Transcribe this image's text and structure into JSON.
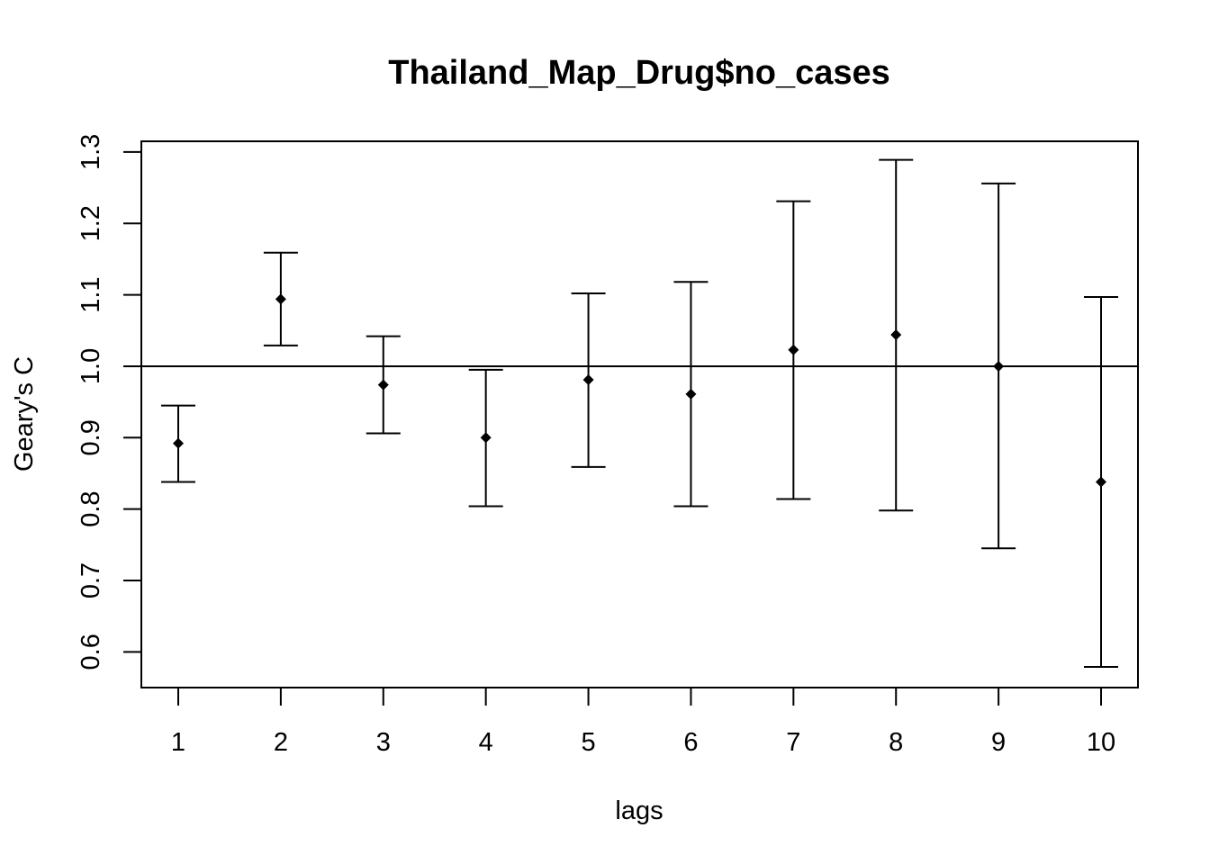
{
  "chart_data": {
    "type": "scatter",
    "title": "Thailand_Map_Drug$no_cases",
    "xlabel": "lags",
    "ylabel": "Geary's  C",
    "x_ticks": [
      "1",
      "2",
      "3",
      "4",
      "5",
      "6",
      "7",
      "8",
      "9",
      "10"
    ],
    "y_ticks": [
      "0.6",
      "0.7",
      "0.8",
      "0.9",
      "1.0",
      "1.1",
      "1.2",
      "1.3"
    ],
    "xlim": [
      0.64,
      10.36
    ],
    "ylim": [
      0.55,
      1.315
    ],
    "reference_line": 1.0,
    "series": [
      {
        "x": [
          1,
          2,
          3,
          4,
          5,
          6,
          7,
          8,
          9,
          10
        ],
        "y": [
          0.892,
          1.094,
          0.974,
          0.9,
          0.981,
          0.961,
          1.023,
          1.044,
          1.0,
          0.838
        ],
        "lower": [
          0.838,
          1.029,
          0.906,
          0.804,
          0.859,
          0.804,
          0.814,
          0.798,
          0.745,
          0.579
        ],
        "upper": [
          0.945,
          1.159,
          1.042,
          0.995,
          1.102,
          1.118,
          1.231,
          1.289,
          1.256,
          1.097
        ]
      }
    ],
    "grid": false,
    "legend": "none"
  }
}
